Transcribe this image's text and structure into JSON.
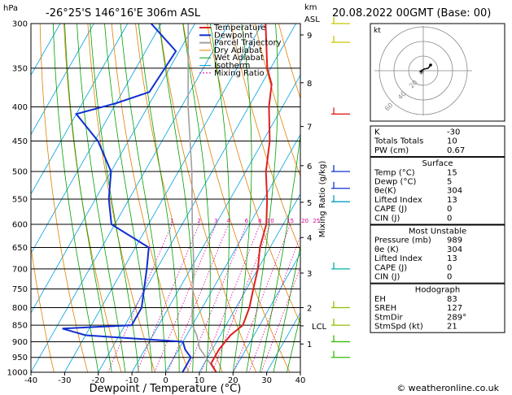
{
  "header": {
    "hpa_label": "hPa",
    "location": "-26°25'S 146°16'E 306m ASL",
    "km_label": "km",
    "asl_label": "ASL",
    "date": "20.08.2022 00GMT (Base: 00)"
  },
  "chart_data": {
    "type": "line",
    "xlabel": "Dewpoint / Temperature (°C)",
    "ylabel_right": "Mixing Ratio (g/kg)",
    "x_ticks": [
      -40,
      -30,
      -20,
      -10,
      0,
      10,
      20,
      30,
      40
    ],
    "pressure_ticks": [
      300,
      350,
      400,
      450,
      500,
      550,
      600,
      650,
      700,
      750,
      800,
      850,
      900,
      950,
      1000
    ],
    "ylim": [
      1000,
      300
    ],
    "xlim": [
      -40,
      40
    ],
    "km_ticks": [
      {
        "label": "9",
        "p": 312
      },
      {
        "label": "8",
        "p": 368
      },
      {
        "label": "7",
        "p": 428
      },
      {
        "label": "6",
        "p": 490
      },
      {
        "label": "5",
        "p": 556
      },
      {
        "label": "4",
        "p": 628
      },
      {
        "label": "3",
        "p": 710
      },
      {
        "label": "2",
        "p": 800
      },
      {
        "label": "LCL",
        "p": 852
      },
      {
        "label": "1",
        "p": 907
      }
    ],
    "mixing_ratio_labels": [
      "1",
      "2",
      "3",
      "4",
      "6",
      "8",
      "10",
      "15",
      "20",
      "25"
    ],
    "mixing_ratio_values": [
      1,
      2,
      3,
      4,
      6,
      8,
      10,
      15,
      20,
      25
    ],
    "series": [
      {
        "name": "Temperature",
        "color": "#e02020",
        "points": [
          [
            1000,
            15
          ],
          [
            970,
            12
          ],
          [
            925,
            12
          ],
          [
            880,
            13
          ],
          [
            850,
            15
          ],
          [
            800,
            14
          ],
          [
            750,
            12
          ],
          [
            700,
            10
          ],
          [
            650,
            7
          ],
          [
            600,
            5
          ],
          [
            550,
            1
          ],
          [
            500,
            -4
          ],
          [
            450,
            -8
          ],
          [
            400,
            -14
          ],
          [
            370,
            -17
          ],
          [
            350,
            -21
          ],
          [
            300,
            -29
          ]
        ]
      },
      {
        "name": "Dewpoint",
        "color": "#1030d0",
        "points": [
          [
            1000,
            5
          ],
          [
            950,
            5
          ],
          [
            925,
            2
          ],
          [
            900,
            0
          ],
          [
            880,
            -30
          ],
          [
            860,
            -38
          ],
          [
            850,
            -18
          ],
          [
            800,
            -18
          ],
          [
            700,
            -23
          ],
          [
            650,
            -26
          ],
          [
            600,
            -41
          ],
          [
            550,
            -46
          ],
          [
            500,
            -50
          ],
          [
            450,
            -59
          ],
          [
            410,
            -70
          ],
          [
            395,
            -60
          ],
          [
            380,
            -52
          ],
          [
            330,
            -51
          ],
          [
            300,
            -63
          ]
        ]
      },
      {
        "name": "Parcel Trajectory",
        "color": "#a0a0a0",
        "points": [
          [
            1000,
            15
          ],
          [
            920,
            6
          ],
          [
            880,
            3
          ],
          [
            850,
            0
          ],
          [
            800,
            -3
          ],
          [
            700,
            -9
          ],
          [
            600,
            -17
          ],
          [
            500,
            -26
          ],
          [
            400,
            -38
          ],
          [
            300,
            -52
          ]
        ]
      }
    ],
    "legend": [
      "Temperature",
      "Dewpoint",
      "Parcel Trajectory",
      "Dry Adiabat",
      "Wet Adiabat",
      "Isotherm",
      "Mixing Ratio"
    ],
    "legend_colors": [
      "#e02020",
      "#1030d0",
      "#a0a0a0",
      "#e08000",
      "#00a000",
      "#00a0e0",
      "#e000a0"
    ]
  },
  "hodograph": {
    "label": "kt",
    "rings": [
      "20",
      "40",
      "60"
    ]
  },
  "indices": {
    "rows": [
      {
        "label": "K",
        "value": "-30"
      },
      {
        "label": "Totals Totals",
        "value": "10"
      },
      {
        "label": "PW (cm)",
        "value": "0.67"
      }
    ]
  },
  "surface": {
    "title": "Surface",
    "rows": [
      {
        "label": "Temp (°C)",
        "value": "15"
      },
      {
        "label": "Dewp (°C)",
        "value": "5"
      },
      {
        "label": "θe(K)",
        "value": "304"
      },
      {
        "label": "Lifted Index",
        "value": "13"
      },
      {
        "label": "CAPE (J)",
        "value": "0"
      },
      {
        "label": "CIN (J)",
        "value": "0"
      }
    ]
  },
  "most_unstable": {
    "title": "Most Unstable",
    "rows": [
      {
        "label": "Pressure (mb)",
        "value": "989"
      },
      {
        "label": "θe (K)",
        "value": "304"
      },
      {
        "label": "Lifted Index",
        "value": "13"
      },
      {
        "label": "CAPE (J)",
        "value": "0"
      },
      {
        "label": "CIN (J)",
        "value": "0"
      }
    ]
  },
  "hodograph_table": {
    "title": "Hodograph",
    "rows": [
      {
        "label": "EH",
        "value": "83"
      },
      {
        "label": "SREH",
        "value": "127"
      },
      {
        "label": "StmDir",
        "value": "289°"
      },
      {
        "label": "StmSpd (kt)",
        "value": "21"
      }
    ]
  },
  "copyright": "© weatheronline.co.uk"
}
